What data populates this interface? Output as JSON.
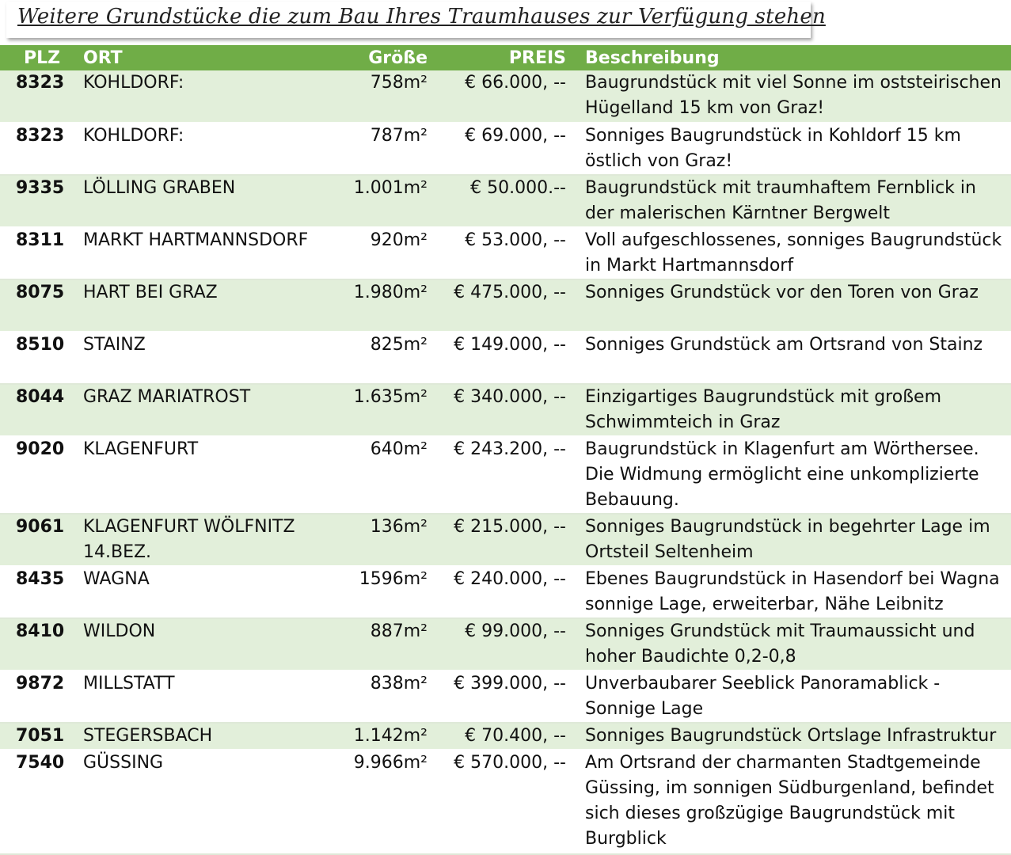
{
  "header": {
    "title": "Weitere Grundstücke die zum Bau Ihres Traumhauses zur Verfügung stehen"
  },
  "table": {
    "columns": [
      "PLZ",
      "ORT",
      "Größe",
      "PREIS",
      "Beschreibung"
    ],
    "rows": [
      [
        "8323",
        "KOHLDORF:",
        "758m²",
        "€ 66.000, --",
        "Baugrundstück mit viel Sonne im oststeirischen Hügelland 15 km von Graz!"
      ],
      [
        "8323",
        "KOHLDORF:",
        "787m²",
        "€ 69.000, --",
        "Sonniges Baugrundstück in Kohldorf 15 km östlich von Graz!"
      ],
      [
        "9335",
        "LÖLLING GRABEN",
        "1.001m²",
        "€ 50.000.--",
        "Baugrundstück mit traumhaftem Fernblick in der malerischen Kärntner Bergwelt"
      ],
      [
        "8311",
        "MARKT HARTMANNSDORF",
        "920m²",
        "€ 53.000, --",
        "Voll aufgeschlossenes, sonniges Baugrundstück in Markt Hartmannsdorf"
      ],
      [
        "8075",
        "HART BEI GRAZ",
        "1.980m²",
        "€ 475.000, --",
        "Sonniges Grundstück vor den Toren von Graz"
      ],
      [
        "8510",
        "STAINZ",
        "825m²",
        "€ 149.000, --",
        "Sonniges Grundstück am Ortsrand von Stainz"
      ],
      [
        "8044",
        "GRAZ MARIATROST",
        "1.635m²",
        "€ 340.000, --",
        "Einzigartiges Baugrundstück mit großem Schwimmteich in Graz"
      ],
      [
        "9020",
        "KLAGENFURT",
        "640m²",
        "€ 243.200, --",
        "Baugrundstück in Klagenfurt am Wörthersee. Die Widmung ermöglicht eine unkomplizierte Bebauung."
      ],
      [
        "9061",
        "KLAGENFURT WÖLFNITZ 14.BEZ.",
        "136m²",
        "€ 215.000, --",
        "Sonniges Baugrundstück in begehrter Lage im Ortsteil Seltenheim"
      ],
      [
        "8435",
        "WAGNA",
        "1596m²",
        "€ 240.000, --",
        "Ebenes Baugrundstück in Hasendorf bei Wagna sonnige Lage, erweiterbar, Nähe Leibnitz"
      ],
      [
        "8410",
        "WILDON",
        "887m²",
        "€ 99.000, --",
        "Sonniges Grundstück mit Traumaussicht und hoher Baudichte 0,2-0,8"
      ],
      [
        "9872",
        "MILLSTATT",
        "838m²",
        "€ 399.000, --",
        "Unverbaubarer Seeblick Panoramablick - Sonnige Lage"
      ],
      [
        "7051",
        "STEGERSBACH",
        "1.142m²",
        "€ 70.400, --",
        "Sonniges Baugrundstück Ortslage Infrastruktur"
      ],
      [
        "7540",
        "GÜSSING",
        "9.966m²",
        "€ 570.000, --",
        "Am Ortsrand der charmanten Stadtgemeinde Güssing, im sonnigen Südburgenland, befindet sich dieses großzügige Baugrundstück mit Burgblick"
      ]
    ]
  }
}
